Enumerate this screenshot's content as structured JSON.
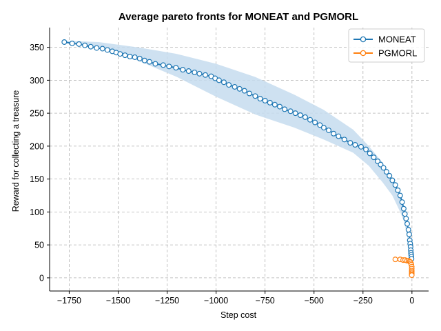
{
  "chart_data": {
    "type": "line",
    "title": "Average pareto fronts for MONEAT and PGMORL",
    "xlabel": "Step cost",
    "ylabel": "Reward for collecting a treasure",
    "xlim": [
      -1850,
      85
    ],
    "ylim": [
      -20,
      380
    ],
    "x_ticks": [
      -1750,
      -1500,
      -1250,
      -1000,
      -750,
      -500,
      -250,
      0
    ],
    "x_tick_labels": [
      "−1750",
      "−1500",
      "−1250",
      "−1000",
      "−750",
      "−500",
      "−250",
      "0"
    ],
    "y_ticks": [
      0,
      50,
      100,
      150,
      200,
      250,
      300,
      350
    ],
    "y_tick_labels": [
      "0",
      "50",
      "100",
      "150",
      "200",
      "250",
      "300",
      "350"
    ],
    "grid": true,
    "legend_position": "top-right",
    "colors": {
      "moneat": "#1f77b4",
      "pgmorl": "#ff7f0e",
      "band": "#c6dcee"
    },
    "series": [
      {
        "name": "MONEAT",
        "x": [
          -1775,
          -1735,
          -1700,
          -1670,
          -1640,
          -1610,
          -1580,
          -1555,
          -1530,
          -1510,
          -1490,
          -1465,
          -1440,
          -1415,
          -1390,
          -1365,
          -1340,
          -1310,
          -1270,
          -1240,
          -1205,
          -1170,
          -1140,
          -1110,
          -1085,
          -1055,
          -1025,
          -1005,
          -985,
          -960,
          -935,
          -905,
          -880,
          -855,
          -830,
          -800,
          -775,
          -750,
          -725,
          -700,
          -675,
          -650,
          -620,
          -595,
          -570,
          -545,
          -520,
          -495,
          -470,
          -450,
          -425,
          -400,
          -375,
          -345,
          -315,
          -290,
          -260,
          -235,
          -215,
          -195,
          -175,
          -160,
          -145,
          -130,
          -115,
          -100,
          -85,
          -72,
          -60,
          -50,
          -42,
          -36,
          -30,
          -24,
          -18,
          -14,
          -11,
          -9,
          -7,
          -6,
          -5,
          -4,
          -3,
          -2
        ],
        "y": [
          358,
          356,
          355,
          353,
          351,
          349,
          348,
          346,
          344,
          342,
          340,
          338,
          336,
          335,
          333,
          330,
          328,
          325,
          323,
          321,
          319,
          316,
          314,
          312,
          310,
          308,
          306,
          303,
          300,
          297,
          293,
          290,
          287,
          284,
          280,
          276,
          272,
          269,
          266,
          263,
          260,
          256,
          253,
          250,
          247,
          244,
          240,
          236,
          232,
          228,
          224,
          219,
          215,
          210,
          205,
          202,
          199,
          195,
          189,
          183,
          177,
          172,
          167,
          161,
          155,
          148,
          141,
          133,
          125,
          115,
          105,
          97,
          90,
          82,
          73,
          66,
          57,
          52,
          47,
          42,
          38,
          35,
          32,
          29
        ]
      },
      {
        "name": "PGMORL",
        "x": [
          -85,
          -60,
          -45,
          -35,
          -25,
          -18,
          -12,
          -8,
          -5,
          -3,
          -1,
          -1,
          -1,
          -1,
          -1,
          -1,
          -1
        ],
        "y": [
          28,
          28,
          27,
          27,
          26,
          26,
          25,
          24,
          22,
          20,
          17,
          14,
          11,
          9,
          7,
          5,
          4
        ]
      }
    ],
    "band_upper": {
      "x": [
        -1775,
        -1600,
        -1400,
        -1200,
        -1000,
        -800,
        -600,
        -450,
        -300,
        -220,
        -150,
        -100,
        -60,
        -40,
        -25,
        -15,
        -5,
        0
      ],
      "y": [
        360,
        358,
        350,
        340,
        325,
        305,
        278,
        255,
        225,
        200,
        175,
        150,
        125,
        100,
        75,
        55,
        40,
        30
      ]
    },
    "band_lower": {
      "x": [
        0,
        -5,
        -15,
        -25,
        -40,
        -60,
        -100,
        -150,
        -220,
        -300,
        -450,
        -600,
        -800,
        -1000,
        -1200,
        -1400,
        -1600,
        -1775
      ],
      "y": [
        30,
        34,
        45,
        65,
        85,
        100,
        125,
        145,
        170,
        190,
        210,
        228,
        248,
        275,
        305,
        330,
        348,
        358
      ]
    }
  }
}
